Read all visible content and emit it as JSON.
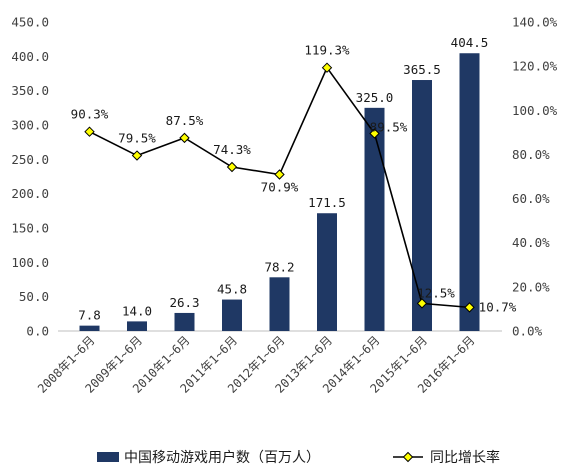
{
  "chart_data": {
    "type": "bar",
    "categories": [
      "2008年1~6月",
      "2009年1~6月",
      "2010年1~6月",
      "2011年1~6月",
      "2012年1~6月",
      "2013年1~6月",
      "2014年1~6月",
      "2015年1~6月",
      "2016年1~6月"
    ],
    "series": [
      {
        "name": "中国移动游戏用户数（百万人）",
        "type": "bar",
        "axis": "left",
        "color": "#1f3864",
        "values": [
          7.8,
          14.0,
          26.3,
          45.8,
          78.2,
          171.5,
          325.0,
          365.5,
          404.5
        ],
        "labels": [
          "7.8",
          "14.0",
          "26.3",
          "45.8",
          "78.2",
          "171.5",
          "325.0",
          "365.5",
          "404.5"
        ]
      },
      {
        "name": "同比增长率",
        "type": "line",
        "axis": "right",
        "color": "#000000",
        "marker_color": "#ffff00",
        "values": [
          90.3,
          79.5,
          87.5,
          74.3,
          70.9,
          119.3,
          89.5,
          12.5,
          10.7
        ],
        "labels": [
          "90.3%",
          "79.5%",
          "87.5%",
          "74.3%",
          "70.9%",
          "119.3%",
          "89.5%",
          "12.5%",
          "10.7%"
        ]
      }
    ],
    "left_axis": {
      "ylim": [
        0,
        450
      ],
      "ticks": [
        "0.0",
        "50.0",
        "100.0",
        "150.0",
        "200.0",
        "250.0",
        "300.0",
        "350.0",
        "400.0",
        "450.0"
      ]
    },
    "right_axis": {
      "ylim": [
        0,
        140
      ],
      "ticks": [
        "0.0%",
        "20.0%",
        "40.0%",
        "60.0%",
        "80.0%",
        "100.0%",
        "120.0%",
        "140.0%"
      ]
    },
    "grid": false,
    "legend_position": "bottom"
  }
}
